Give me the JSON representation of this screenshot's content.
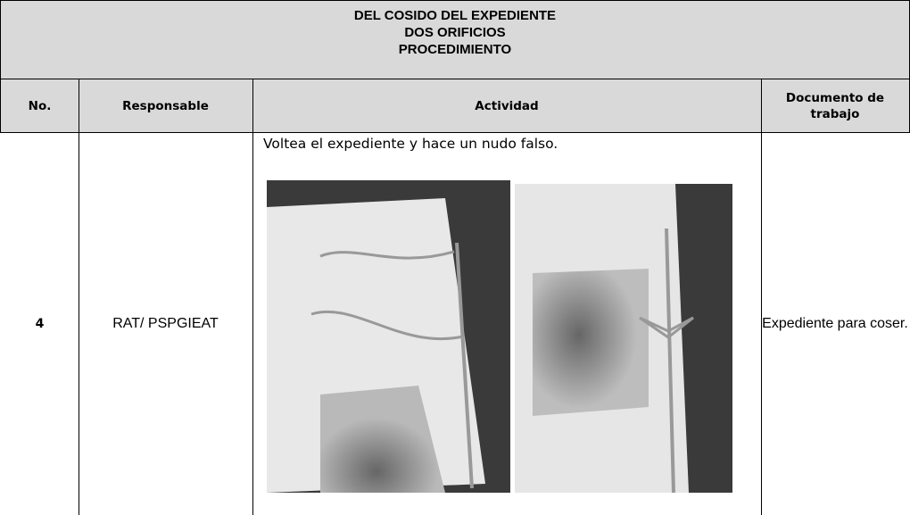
{
  "header": {
    "title_lines": [
      "DEL COSIDO DEL EXPEDIENTE",
      "DOS ORIFICIOS",
      "PROCEDIMIENTO"
    ]
  },
  "table": {
    "columns": [
      "No.",
      "Responsable",
      "Actividad",
      "Documento de trabajo"
    ],
    "rows": [
      [
        "4",
        "RAT/ PSPGIEAT",
        "Voltea el expediente y hace un nudo falso.",
        "Expediente para coser."
      ]
    ]
  }
}
